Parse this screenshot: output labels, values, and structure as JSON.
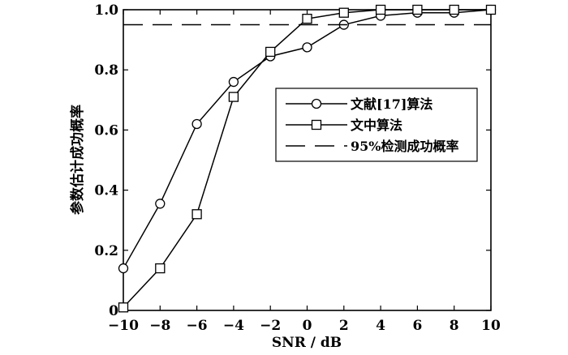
{
  "chart_data": {
    "type": "line",
    "xlabel": "SNR / dB",
    "ylabel": "参数估计成功概率",
    "xlim": [
      -10,
      10
    ],
    "ylim": [
      0,
      1.0
    ],
    "xticks": [
      "−10",
      "−8",
      "−6",
      "−4",
      "−2",
      "0",
      "2",
      "4",
      "6",
      "8",
      "10"
    ],
    "yticks": [
      "0",
      "0.2",
      "0.4",
      "0.6",
      "0.8",
      "1.0"
    ],
    "grid": false,
    "legend_position": "center-right",
    "series": [
      {
        "name": "文献[17]算法",
        "marker": "circle",
        "line": "solid",
        "x": [
          -10,
          -8,
          -6,
          -4,
          -2,
          0,
          2,
          4,
          6,
          8,
          10
        ],
        "y": [
          0.14,
          0.355,
          0.62,
          0.76,
          0.845,
          0.875,
          0.95,
          0.98,
          0.99,
          0.99,
          1.0
        ]
      },
      {
        "name": "文中算法",
        "marker": "square",
        "line": "solid",
        "x": [
          -10,
          -8,
          -6,
          -4,
          -2,
          0,
          2,
          4,
          6,
          8,
          10
        ],
        "y": [
          0.01,
          0.14,
          0.32,
          0.71,
          0.86,
          0.97,
          0.99,
          1.0,
          1.0,
          1.0,
          1.0
        ]
      },
      {
        "name": "95%检测成功概率",
        "marker": "none",
        "line": "dashed",
        "x": [
          -10,
          10
        ],
        "y": [
          0.95,
          0.95
        ]
      }
    ]
  }
}
